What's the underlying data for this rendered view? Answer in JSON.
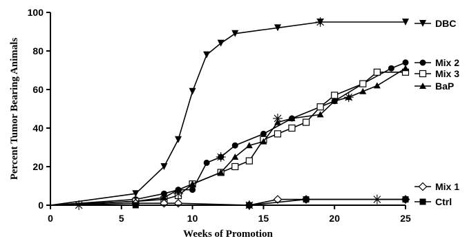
{
  "chart_data": {
    "type": "line",
    "xlabel": "Weeks of Promotion",
    "ylabel": "Percent Tumor Bearing Animals",
    "xlim": [
      0,
      25
    ],
    "ylim": [
      0,
      100
    ],
    "xticks": [
      "0",
      "5",
      "10",
      "15",
      "20",
      "25"
    ],
    "yticks": [
      "0",
      "20",
      "40",
      "60",
      "80",
      "100"
    ],
    "grid": false,
    "legend_position": "right",
    "series": [
      {
        "name": "DBC",
        "marker": "triangle-down",
        "color": "#000000",
        "x": [
          0,
          6,
          8,
          9,
          10,
          11,
          12,
          13,
          16,
          19,
          25
        ],
        "y": [
          0,
          6,
          20,
          34,
          59,
          78,
          84,
          89,
          92,
          95,
          95
        ]
      },
      {
        "name": "Mix 2",
        "marker": "circle-filled",
        "color": "#000000",
        "x": [
          0,
          6,
          8,
          9,
          10,
          11,
          12,
          13,
          15,
          17,
          20,
          22,
          24,
          25
        ],
        "y": [
          0,
          3,
          6,
          8,
          8,
          22,
          25,
          31,
          37,
          45,
          54,
          63,
          71,
          74
        ]
      },
      {
        "name": "Mix 3",
        "marker": "square-open",
        "color": "#000000",
        "x": [
          0,
          6,
          8,
          9,
          10,
          12,
          13,
          14,
          15,
          16,
          17,
          18,
          19,
          20,
          22,
          23,
          25
        ],
        "y": [
          0,
          2,
          3,
          5,
          11,
          17,
          20,
          23,
          34,
          37,
          40,
          43,
          51,
          57,
          63,
          69,
          69
        ]
      },
      {
        "name": "BaP",
        "marker": "triangle-up",
        "color": "#000000",
        "x": [
          0,
          6,
          8,
          9,
          10,
          12,
          13,
          14,
          15,
          16,
          17,
          19,
          20,
          21,
          22,
          23,
          25
        ],
        "y": [
          0,
          2,
          4,
          8,
          11,
          17,
          25,
          31,
          33,
          43,
          45,
          47,
          54,
          56,
          59,
          62,
          71
        ]
      },
      {
        "name": "Mix 1",
        "marker": "diamond-open",
        "color": "#000000",
        "x": [
          0,
          6,
          8,
          9,
          14,
          16,
          18,
          25
        ],
        "y": [
          0,
          1,
          1,
          1,
          0,
          3,
          3,
          3
        ]
      },
      {
        "name": "Ctrl",
        "marker": "square-filled",
        "color": "#000000",
        "x": [
          0,
          6,
          14,
          18,
          25
        ],
        "y": [
          0,
          0,
          0,
          3,
          3
        ]
      }
    ],
    "star_markers": [
      {
        "x": 2,
        "y": 0
      },
      {
        "x": 9,
        "y": 6
      },
      {
        "x": 12,
        "y": 25
      },
      {
        "x": 14,
        "y": 0
      },
      {
        "x": 16,
        "y": 45
      },
      {
        "x": 19,
        "y": 95
      },
      {
        "x": 21,
        "y": 56
      },
      {
        "x": 23,
        "y": 3
      }
    ]
  }
}
